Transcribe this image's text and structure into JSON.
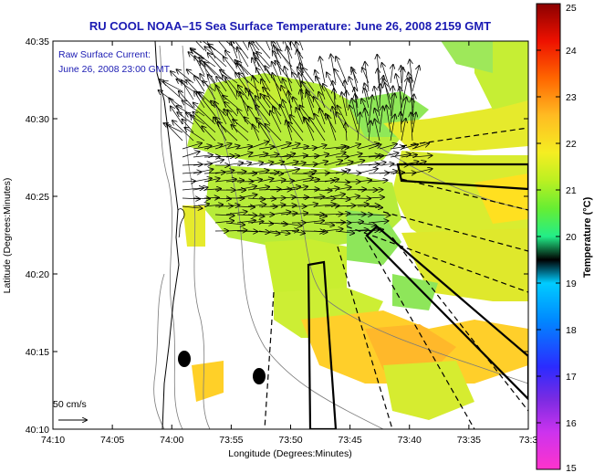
{
  "figure": {
    "title": "RU COOL   NOAA–15  Sea Surface Temperature:  June 26, 2008 2159 GMT",
    "current_label": "Raw Surface Current:",
    "current_time": "June 26, 2008 23:00 GMT",
    "scale_label": "50 cm/s",
    "xlabel": "Longitude (Degrees:Minutes)",
    "ylabel": "Latitude (Degrees:Minutes)",
    "colorbar_label": "Temperature (°C)"
  },
  "colors": {
    "title": "#1b1bb3",
    "land": "#ffffff",
    "outline": "#000000"
  },
  "chart_data": {
    "type": "heatmap",
    "x_ticks": [
      "74:10",
      "74:05",
      "74:00",
      "73:55",
      "73:50",
      "73:45",
      "73:40",
      "73:35",
      "73:3"
    ],
    "y_ticks": [
      "40:35",
      "40:30",
      "40:25",
      "40:20",
      "40:15",
      "40:10"
    ],
    "colorbar_ticks": [
      "25",
      "24",
      "23",
      "22",
      "21",
      "20",
      "19",
      "18",
      "17",
      "16",
      "15"
    ],
    "colorbar_range": [
      15,
      25
    ],
    "colormap": [
      "#ff33cc",
      "#8b2be2",
      "#2b2bff",
      "#0099ff",
      "#00e5ee",
      "#22ee66",
      "#9ef02a",
      "#f5ee22",
      "#ffaa22",
      "#ff3300",
      "#8b0000"
    ],
    "sst_range_visible": [
      20,
      22.5
    ]
  }
}
